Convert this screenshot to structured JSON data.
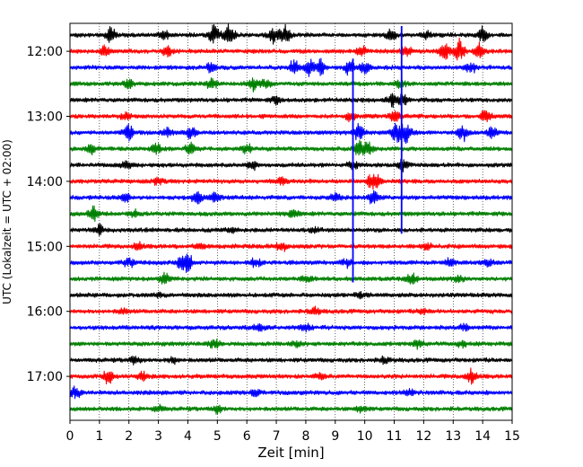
{
  "chart_data": {
    "type": "line",
    "title": "",
    "xlabel": "Zeit  [min]",
    "ylabel": "UTC (Lokalzeit = UTC + 02:00)",
    "xlim": [
      0,
      15
    ],
    "x_ticks": [
      0,
      1,
      2,
      3,
      4,
      5,
      6,
      7,
      8,
      9,
      10,
      11,
      12,
      13,
      14,
      15
    ],
    "x_tick_labels": [
      "0",
      "1",
      "2",
      "3",
      "4",
      "5",
      "6",
      "7",
      "8",
      "9",
      "10",
      "11",
      "12",
      "13",
      "14",
      "15"
    ],
    "y_tick_labels": [
      "12:00",
      "13:00",
      "14:00",
      "15:00",
      "16:00",
      "17:00"
    ],
    "minutes_per_trace": 15,
    "grid": "vertical dotted",
    "trace_colors": [
      "#000000",
      "#ff0000",
      "#0000ff",
      "#008000"
    ],
    "traces": [
      {
        "start": "11:45",
        "events": [
          {
            "t": 1.4,
            "amp": 9
          },
          {
            "t": 3.2,
            "amp": 6
          },
          {
            "t": 4.9,
            "amp": 12
          },
          {
            "t": 5.4,
            "amp": 11
          },
          {
            "t": 6.9,
            "amp": 9
          },
          {
            "t": 7.3,
            "amp": 11
          },
          {
            "t": 10.9,
            "amp": 7
          },
          {
            "t": 12.1,
            "amp": 6
          },
          {
            "t": 14.0,
            "amp": 9
          }
        ]
      },
      {
        "start": "12:00",
        "events": [
          {
            "t": 1.2,
            "amp": 6
          },
          {
            "t": 3.3,
            "amp": 6
          },
          {
            "t": 9.9,
            "amp": 6
          },
          {
            "t": 11.4,
            "amp": 7
          },
          {
            "t": 12.7,
            "amp": 11
          },
          {
            "t": 13.2,
            "amp": 13
          },
          {
            "t": 13.9,
            "amp": 9
          }
        ]
      },
      {
        "start": "12:15",
        "events": [
          {
            "t": 4.8,
            "amp": 7
          },
          {
            "t": 7.6,
            "amp": 8
          },
          {
            "t": 8.1,
            "amp": 10
          },
          {
            "t": 8.5,
            "amp": 9
          },
          {
            "t": 9.5,
            "amp": 9
          },
          {
            "t": 10.0,
            "amp": 7
          },
          {
            "t": 13.6,
            "amp": 7
          }
        ]
      },
      {
        "start": "12:30",
        "events": [
          {
            "t": 2.0,
            "amp": 5
          },
          {
            "t": 4.8,
            "amp": 6
          },
          {
            "t": 6.2,
            "amp": 7
          },
          {
            "t": 6.6,
            "amp": 6
          },
          {
            "t": 11.2,
            "amp": 4
          }
        ]
      },
      {
        "start": "12:45",
        "events": [
          {
            "t": 10.9,
            "amp": 7
          },
          {
            "t": 11.3,
            "amp": 7
          },
          {
            "t": 7.0,
            "amp": 4
          }
        ]
      },
      {
        "start": "13:00",
        "events": [
          {
            "t": 9.5,
            "amp": 6
          },
          {
            "t": 11.0,
            "amp": 7
          },
          {
            "t": 14.1,
            "amp": 8
          },
          {
            "t": 1.9,
            "amp": 4
          }
        ]
      },
      {
        "start": "13:15",
        "events": [
          {
            "t": 2.0,
            "amp": 10
          },
          {
            "t": 3.3,
            "amp": 6
          },
          {
            "t": 4.1,
            "amp": 8
          },
          {
            "t": 9.8,
            "amp": 10
          },
          {
            "t": 11.1,
            "amp": 14
          },
          {
            "t": 11.4,
            "amp": 12
          },
          {
            "t": 13.3,
            "amp": 10
          },
          {
            "t": 14.3,
            "amp": 6
          }
        ]
      },
      {
        "start": "13:30",
        "events": [
          {
            "t": 0.7,
            "amp": 5
          },
          {
            "t": 2.9,
            "amp": 8
          },
          {
            "t": 4.1,
            "amp": 7
          },
          {
            "t": 9.8,
            "amp": 9
          },
          {
            "t": 10.1,
            "amp": 8
          },
          {
            "t": 6.0,
            "amp": 5
          }
        ]
      },
      {
        "start": "13:45",
        "events": [
          {
            "t": 1.9,
            "amp": 5
          },
          {
            "t": 6.2,
            "amp": 5
          },
          {
            "t": 11.3,
            "amp": 7
          },
          {
            "t": 9.6,
            "amp": 5
          }
        ]
      },
      {
        "start": "14:00",
        "events": [
          {
            "t": 3.0,
            "amp": 4
          },
          {
            "t": 7.2,
            "amp": 5
          },
          {
            "t": 10.2,
            "amp": 6
          },
          {
            "t": 10.4,
            "amp": 7
          }
        ]
      },
      {
        "start": "14:15",
        "events": [
          {
            "t": 1.9,
            "amp": 6
          },
          {
            "t": 4.3,
            "amp": 8
          },
          {
            "t": 4.9,
            "amp": 6
          },
          {
            "t": 10.3,
            "amp": 9
          },
          {
            "t": 9.0,
            "amp": 5
          }
        ]
      },
      {
        "start": "14:30",
        "events": [
          {
            "t": 0.8,
            "amp": 8
          },
          {
            "t": 7.6,
            "amp": 5
          },
          {
            "t": 2.2,
            "amp": 4
          }
        ]
      },
      {
        "start": "14:45",
        "events": [
          {
            "t": 1.0,
            "amp": 6
          },
          {
            "t": 5.5,
            "amp": 4
          },
          {
            "t": 8.3,
            "amp": 4
          }
        ]
      },
      {
        "start": "15:00",
        "events": [
          {
            "t": 2.3,
            "amp": 5
          },
          {
            "t": 4.4,
            "amp": 4
          },
          {
            "t": 7.2,
            "amp": 5
          },
          {
            "t": 12.1,
            "amp": 4
          }
        ]
      },
      {
        "start": "15:15",
        "events": [
          {
            "t": 2.0,
            "amp": 6
          },
          {
            "t": 3.8,
            "amp": 9
          },
          {
            "t": 4.0,
            "amp": 10
          },
          {
            "t": 6.3,
            "amp": 6
          },
          {
            "t": 9.4,
            "amp": 5
          },
          {
            "t": 12.9,
            "amp": 6
          },
          {
            "t": 14.2,
            "amp": 5
          }
        ]
      },
      {
        "start": "15:30",
        "events": [
          {
            "t": 3.2,
            "amp": 7
          },
          {
            "t": 11.6,
            "amp": 6
          },
          {
            "t": 13.2,
            "amp": 4
          },
          {
            "t": 8.0,
            "amp": 4
          }
        ]
      },
      {
        "start": "15:45",
        "events": [
          {
            "t": 3.0,
            "amp": 3
          },
          {
            "t": 9.8,
            "amp": 3
          }
        ]
      },
      {
        "start": "16:00",
        "events": [
          {
            "t": 8.3,
            "amp": 5
          },
          {
            "t": 1.8,
            "amp": 3
          },
          {
            "t": 12.0,
            "amp": 3
          }
        ]
      },
      {
        "start": "16:15",
        "events": [
          {
            "t": 6.4,
            "amp": 5
          },
          {
            "t": 8.0,
            "amp": 4
          },
          {
            "t": 13.4,
            "amp": 4
          }
        ]
      },
      {
        "start": "16:30",
        "events": [
          {
            "t": 4.9,
            "amp": 6
          },
          {
            "t": 7.7,
            "amp": 5
          },
          {
            "t": 11.8,
            "amp": 5
          },
          {
            "t": 13.3,
            "amp": 4
          }
        ]
      },
      {
        "start": "16:45",
        "events": [
          {
            "t": 2.2,
            "amp": 5
          },
          {
            "t": 3.5,
            "amp": 4
          },
          {
            "t": 10.7,
            "amp": 4
          }
        ]
      },
      {
        "start": "17:00",
        "events": [
          {
            "t": 1.3,
            "amp": 7
          },
          {
            "t": 2.5,
            "amp": 6
          },
          {
            "t": 13.6,
            "amp": 9
          },
          {
            "t": 8.5,
            "amp": 4
          }
        ]
      },
      {
        "start": "17:15",
        "events": [
          {
            "t": 0.2,
            "amp": 7
          },
          {
            "t": 6.3,
            "amp": 4
          },
          {
            "t": 11.5,
            "amp": 4
          }
        ]
      },
      {
        "start": "17:30",
        "events": [
          {
            "t": 3.0,
            "amp": 4
          },
          {
            "t": 5.0,
            "amp": 5
          },
          {
            "t": 9.9,
            "amp": 4
          }
        ]
      }
    ],
    "vertical_spikes": [
      {
        "t": 9.6,
        "from": "12:15",
        "to": "15:30",
        "color": "#0000ff"
      },
      {
        "t": 11.25,
        "from": "11:45",
        "to": "14:45",
        "color": "#0000ff"
      }
    ]
  }
}
